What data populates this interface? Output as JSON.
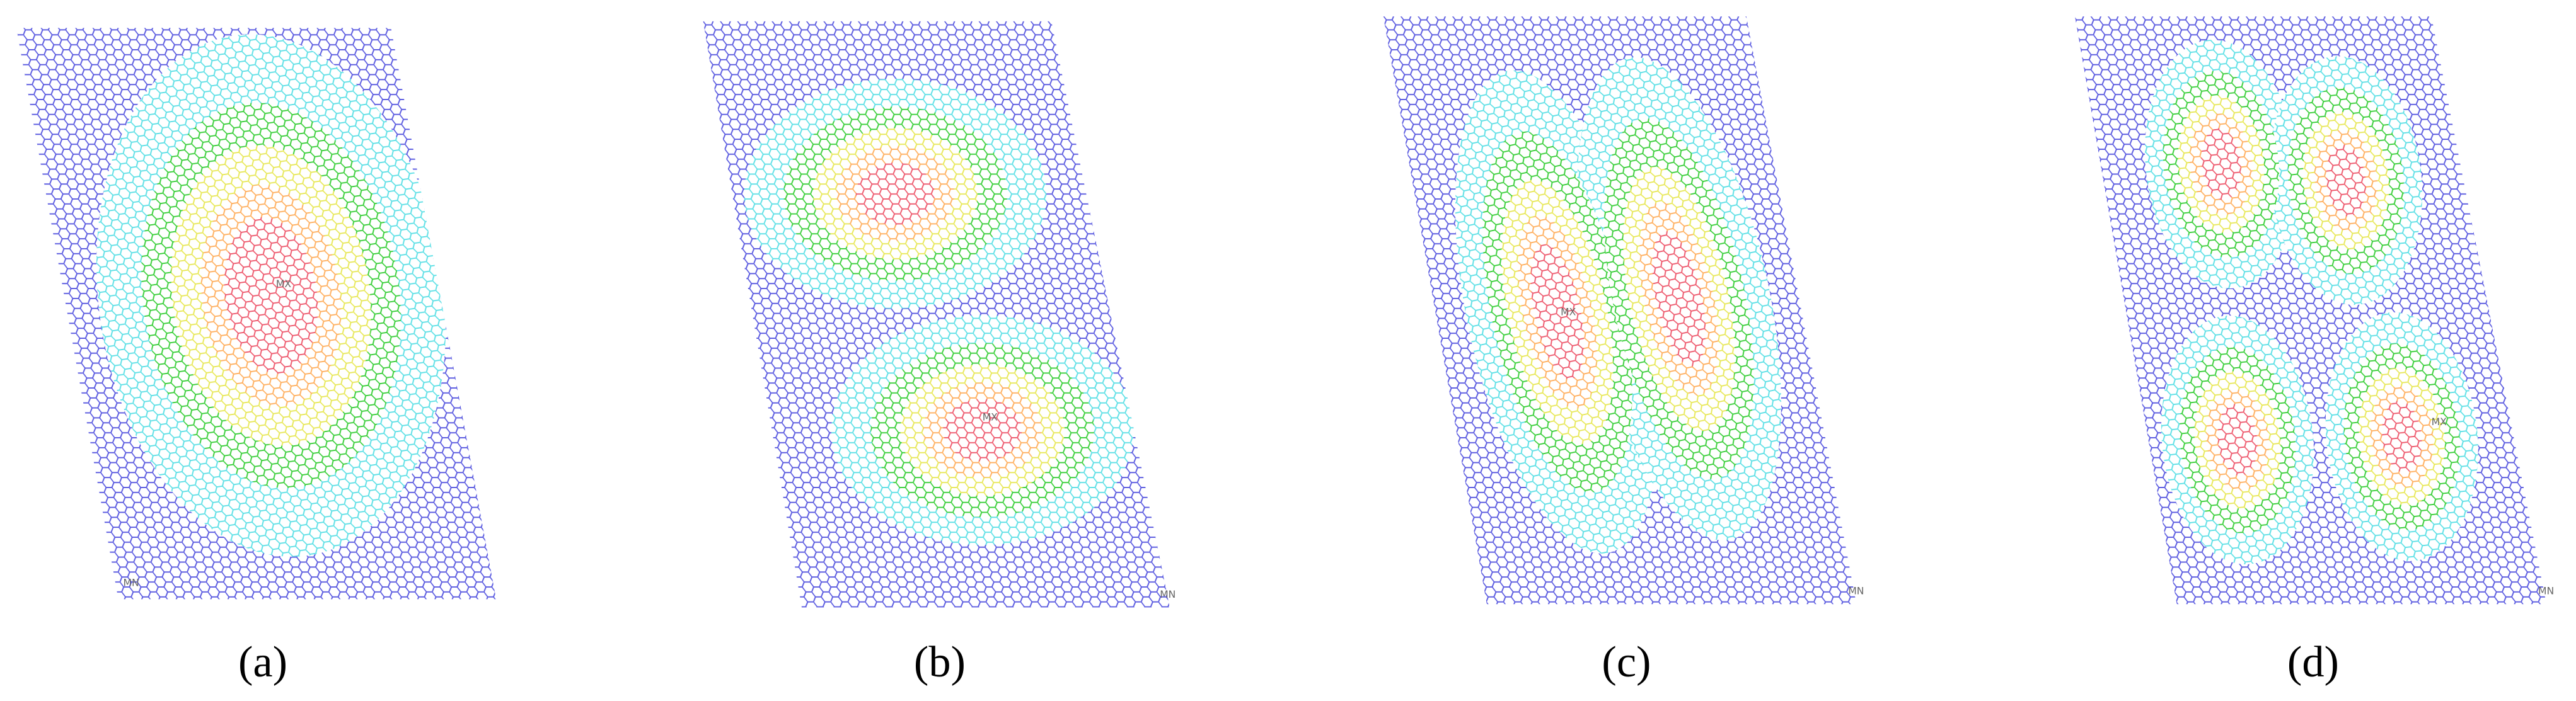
{
  "panels": [
    {
      "label": "(a)",
      "max_marker": "MX",
      "min_marker": "MN"
    },
    {
      "label": "(b)",
      "max_marker": "MX",
      "min_marker": "MN"
    },
    {
      "label": "(c)",
      "max_marker": "MX",
      "min_marker": "MN"
    },
    {
      "label": "(d)",
      "max_marker": "MX",
      "min_marker": "MN"
    }
  ]
}
